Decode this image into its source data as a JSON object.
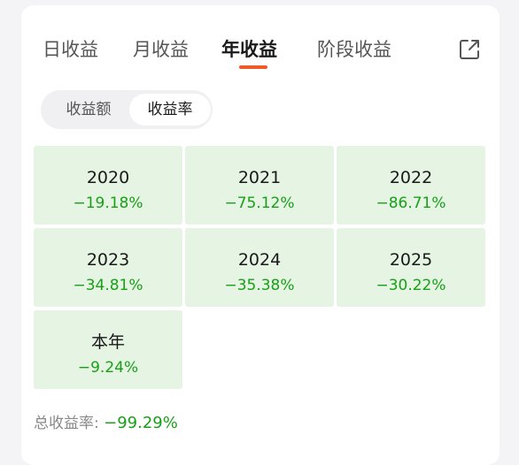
{
  "tabs": [
    {
      "label": "日收益",
      "active": false
    },
    {
      "label": "月收益",
      "active": false
    },
    {
      "label": "年收益",
      "active": true
    },
    {
      "label": "阶段收益",
      "active": false
    }
  ],
  "share_icon": "share-icon",
  "segment": {
    "options": [
      "收益额",
      "收益率"
    ],
    "selected": "收益率"
  },
  "cells": [
    {
      "year": "2020",
      "value": "−19.18%"
    },
    {
      "year": "2021",
      "value": "−75.12%"
    },
    {
      "year": "2022",
      "value": "−86.71%"
    },
    {
      "year": "2023",
      "value": "−34.81%"
    },
    {
      "year": "2024",
      "value": "−35.38%"
    },
    {
      "year": "2025",
      "value": "−30.22%"
    },
    {
      "year": "本年",
      "value": "−9.24%"
    }
  ],
  "summary": {
    "label": "总收益率: ",
    "value": "−99.29%"
  },
  "colors": {
    "accent": "#f05a24",
    "loss_green": "#18a018",
    "cell_bg": "#e5f4e3"
  }
}
